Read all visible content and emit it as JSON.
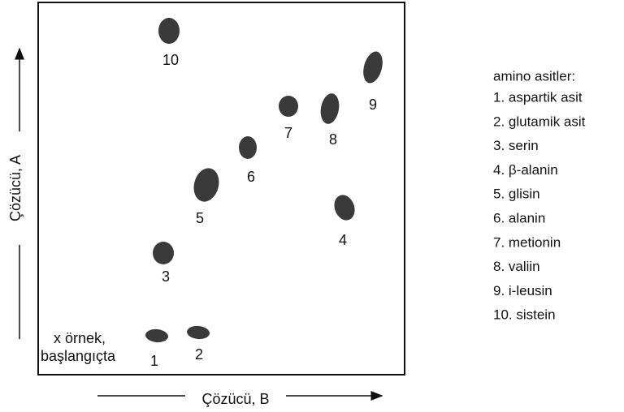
{
  "spots": [
    {
      "label": "1"
    },
    {
      "label": "2"
    },
    {
      "label": "3"
    },
    {
      "label": "4"
    },
    {
      "label": "5"
    },
    {
      "label": "6"
    },
    {
      "label": "7"
    },
    {
      "label": "8"
    },
    {
      "label": "9"
    },
    {
      "label": "10"
    }
  ],
  "origin_note": [
    "x örnek,",
    "başlangıçta"
  ],
  "axes": {
    "y_label": "Çözücü, A",
    "x_label": "Çözücü, B"
  },
  "legend": {
    "title": "amino asitler:",
    "items": [
      "1. aspartik asit",
      "2. glutamik asit",
      "3. serin",
      "4. β-alanin",
      "5. glisin",
      "6. alanin",
      "7. metionin",
      "8. valiin",
      "9. i-leusin",
      "10. sistein"
    ]
  }
}
